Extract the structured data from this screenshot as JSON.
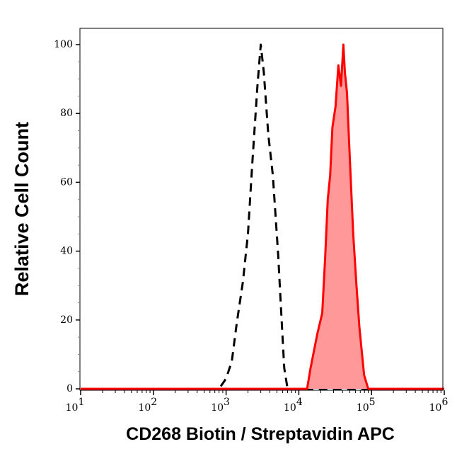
{
  "chart_data": {
    "type": "area",
    "title": "",
    "xlabel": "CD268 Biotin / Streptavidin APC",
    "ylabel": "Relative Cell Count",
    "xscale": "log",
    "xlim": [
      10,
      1000000
    ],
    "ylim": [
      0,
      105
    ],
    "x_ticks": [
      {
        "base": "10",
        "exp": "1",
        "value": 10
      },
      {
        "base": "10",
        "exp": "2",
        "value": 100
      },
      {
        "base": "10",
        "exp": "3",
        "value": 1000
      },
      {
        "base": "10",
        "exp": "4",
        "value": 10000
      },
      {
        "base": "10",
        "exp": "5",
        "value": 100000
      },
      {
        "base": "10",
        "exp": "6",
        "value": 1000000
      }
    ],
    "y_ticks": [
      "0",
      "20",
      "40",
      "60",
      "80",
      "100"
    ],
    "grid": false,
    "series": [
      {
        "style": "dashed line",
        "color": "#000000",
        "x": [
          10,
          800,
          1000,
          1200,
          1400,
          1700,
          2000,
          2300,
          2700,
          3000,
          3300,
          3800,
          4400,
          5200,
          5800,
          6300,
          7000,
          1000000
        ],
        "y": [
          0,
          0,
          3,
          8,
          19,
          31,
          45,
          66,
          88,
          100,
          92,
          74,
          62,
          39,
          20,
          6,
          0,
          0
        ]
      },
      {
        "style": "filled",
        "color": "#ff0000",
        "fill": "#ff9999",
        "x": [
          10,
          13000,
          14500,
          15800,
          18000,
          21000,
          23000,
          25000,
          27000,
          29000,
          32000,
          35000,
          38000,
          41000,
          43000,
          46000,
          49000,
          52000,
          56000,
          62000,
          68000,
          74000,
          79000,
          90000,
          1000000
        ],
        "y": [
          0,
          0,
          6,
          10,
          16,
          22,
          38,
          55,
          62,
          76,
          82,
          94,
          88,
          100,
          92,
          86,
          72,
          60,
          45,
          30,
          18,
          10,
          4,
          0,
          0
        ]
      }
    ]
  }
}
